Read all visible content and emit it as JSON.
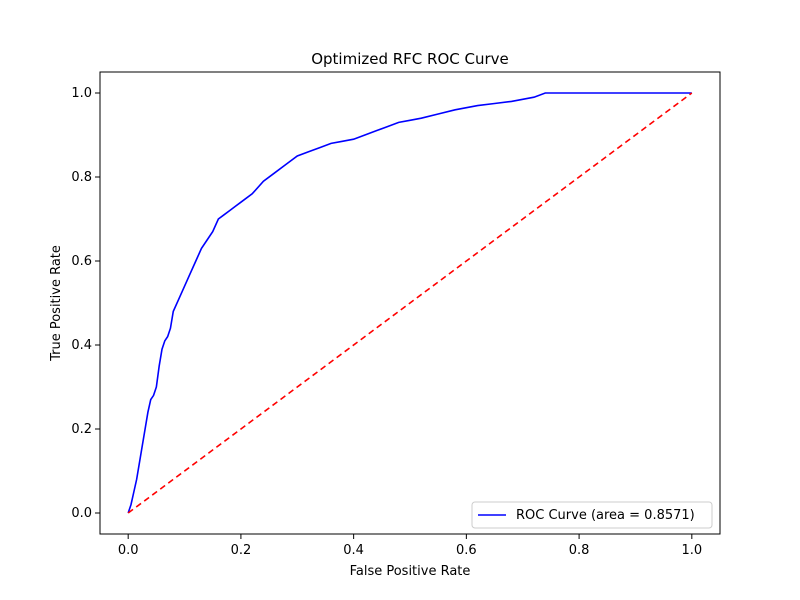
{
  "chart_data": {
    "type": "line",
    "title": "Optimized RFC ROC Curve",
    "xlabel": "False Positive Rate",
    "ylabel": "True Positive Rate",
    "xlim": [
      -0.05,
      1.05
    ],
    "ylim": [
      -0.05,
      1.05
    ],
    "x_ticks": [
      "0.0",
      "0.2",
      "0.4",
      "0.6",
      "0.8",
      "1.0"
    ],
    "y_ticks": [
      "0.0",
      "0.2",
      "0.4",
      "0.6",
      "0.8",
      "1.0"
    ],
    "grid": false,
    "legend_position": "lower-right",
    "series": [
      {
        "name": "ROC Curve (area = 0.8571)",
        "color": "#0000ff",
        "style": "solid",
        "x": [
          0.0,
          0.005,
          0.01,
          0.015,
          0.02,
          0.025,
          0.03,
          0.035,
          0.04,
          0.045,
          0.05,
          0.055,
          0.06,
          0.065,
          0.07,
          0.075,
          0.08,
          0.09,
          0.1,
          0.11,
          0.12,
          0.13,
          0.14,
          0.15,
          0.16,
          0.17,
          0.18,
          0.19,
          0.2,
          0.22,
          0.24,
          0.26,
          0.28,
          0.3,
          0.32,
          0.34,
          0.36,
          0.38,
          0.4,
          0.42,
          0.44,
          0.46,
          0.48,
          0.5,
          0.52,
          0.55,
          0.58,
          0.6,
          0.62,
          0.65,
          0.68,
          0.7,
          0.72,
          0.74,
          0.8,
          0.9,
          0.95,
          1.0
        ],
        "y": [
          0.0,
          0.02,
          0.05,
          0.08,
          0.12,
          0.16,
          0.2,
          0.24,
          0.27,
          0.28,
          0.3,
          0.35,
          0.39,
          0.41,
          0.42,
          0.44,
          0.48,
          0.51,
          0.54,
          0.57,
          0.6,
          0.63,
          0.65,
          0.67,
          0.7,
          0.71,
          0.72,
          0.73,
          0.74,
          0.76,
          0.79,
          0.81,
          0.83,
          0.85,
          0.86,
          0.87,
          0.88,
          0.885,
          0.89,
          0.9,
          0.91,
          0.92,
          0.93,
          0.935,
          0.94,
          0.95,
          0.96,
          0.965,
          0.97,
          0.975,
          0.98,
          0.985,
          0.99,
          1.0,
          1.0,
          1.0,
          1.0,
          1.0
        ]
      },
      {
        "name": "",
        "color": "#ff0000",
        "style": "dashed",
        "x": [
          0.0,
          1.0
        ],
        "y": [
          0.0,
          1.0
        ]
      }
    ],
    "legend_label": "ROC Curve (area = 0.8571)"
  }
}
